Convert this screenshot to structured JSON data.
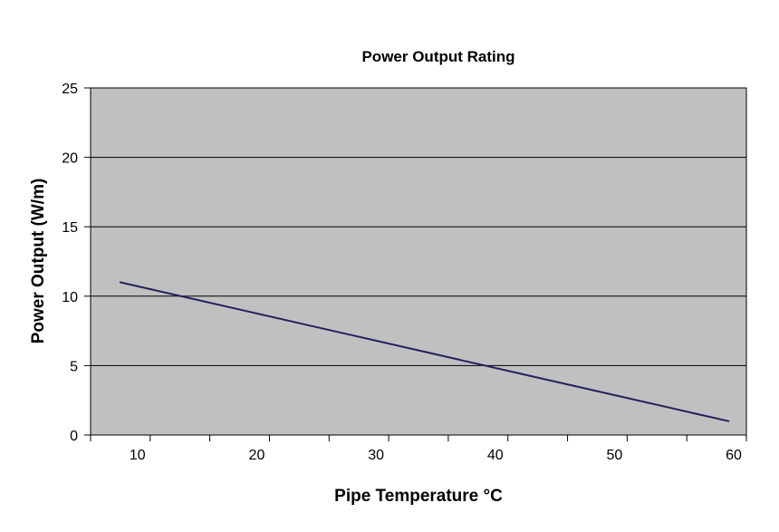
{
  "chart_data": {
    "type": "line",
    "title": "Power Output Rating",
    "xlabel": "Pipe Temperature °C",
    "ylabel": "Power Output (W/m)",
    "xlim": [
      5,
      60
    ],
    "ylim": [
      0,
      25
    ],
    "x_ticks": [
      10,
      20,
      30,
      40,
      50,
      60
    ],
    "y_ticks": [
      0,
      5,
      10,
      15,
      20,
      25
    ],
    "x_minor_ticks": [
      5,
      15,
      25,
      35,
      45,
      55
    ],
    "grid": true,
    "legend": "none",
    "series": [
      {
        "name": "Power Output",
        "x": [
          7.5,
          58.5
        ],
        "values": [
          11,
          1
        ]
      }
    ],
    "colors": {
      "plot_background": "#c0c0c0",
      "gridline": "#000000",
      "series_line": "#22225e",
      "axis": "#000000"
    }
  }
}
